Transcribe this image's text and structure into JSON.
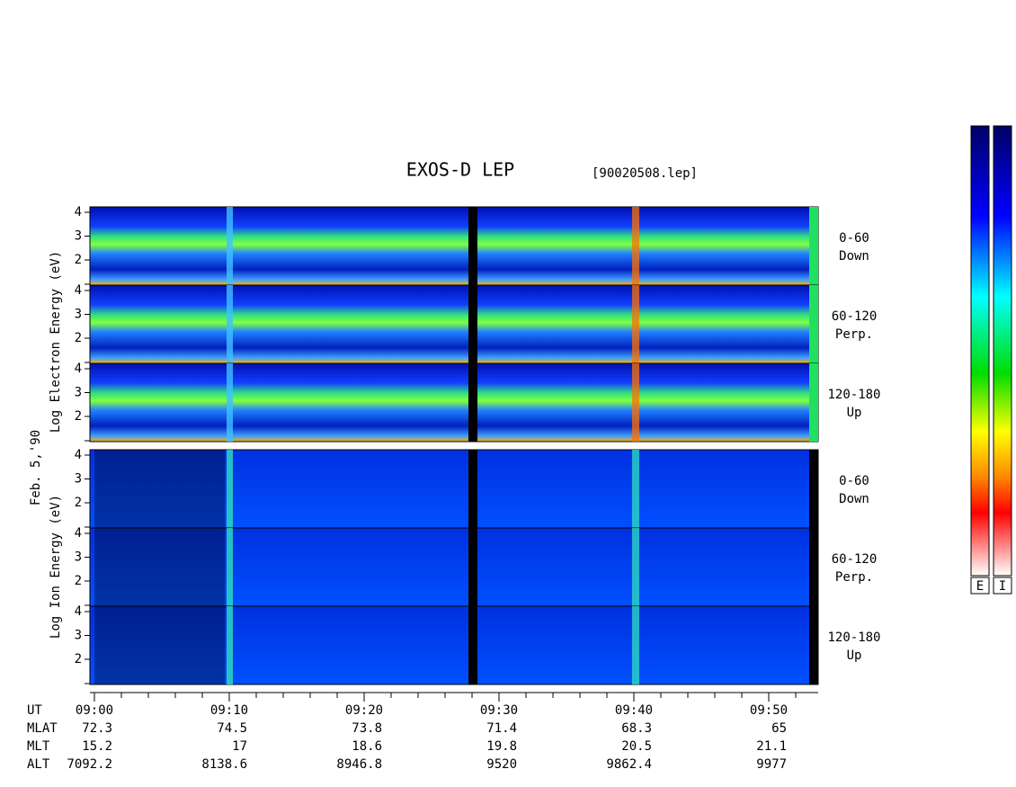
{
  "header": {
    "title": "EXOS-D LEP",
    "file": "[90020508.lep]"
  },
  "axis_labels": {
    "electron": "Log Electron Energy (eV)",
    "date": "Feb. 5,'90",
    "ion": "Log Ion Energy (eV)"
  },
  "energy_ticks": [
    2,
    3,
    4
  ],
  "pitch_labels": [
    [
      "0-60",
      "Down"
    ],
    [
      "60-120",
      "Perp."
    ],
    [
      "120-180",
      "Up"
    ]
  ],
  "orbit": {
    "rows": [
      {
        "name": "UT",
        "values": [
          "09:00",
          "09:10",
          "09:20",
          "09:30",
          "09:40",
          "09:50"
        ]
      },
      {
        "name": "MLAT",
        "values": [
          72.3,
          74.5,
          73.8,
          71.4,
          68.3,
          65.0
        ]
      },
      {
        "name": "MLT",
        "values": [
          15.2,
          17.0,
          18.6,
          19.8,
          20.5,
          21.1
        ]
      },
      {
        "name": "ALT",
        "values": [
          7092.2,
          8138.6,
          8946.8,
          9520.0,
          9862.4,
          9977.0
        ]
      }
    ]
  },
  "colorbar_labels": [
    "E",
    "I"
  ]
}
